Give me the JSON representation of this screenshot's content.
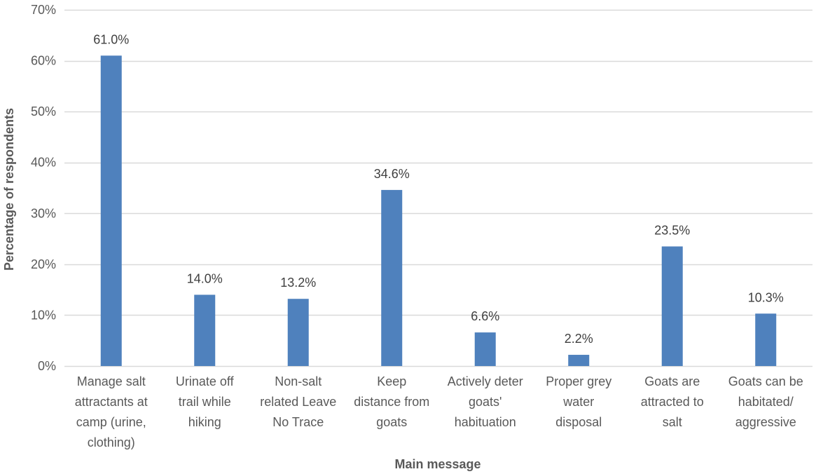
{
  "chart_data": {
    "type": "bar",
    "categories": [
      [
        "Manage salt",
        "attractants at",
        "camp (urine,",
        "clothing)"
      ],
      [
        "Urinate off",
        "trail while",
        "hiking"
      ],
      [
        "Non-salt",
        "related Leave",
        "No Trace"
      ],
      [
        "Keep",
        "distance from",
        "goats"
      ],
      [
        "Actively deter",
        "goats'",
        "habituation"
      ],
      [
        "Proper grey",
        "water",
        "disposal"
      ],
      [
        "Goats are",
        "attracted to",
        "salt"
      ],
      [
        "Goats can be",
        "habitated/",
        "aggressive"
      ]
    ],
    "values": [
      61.0,
      14.0,
      13.2,
      34.6,
      6.6,
      2.2,
      23.5,
      10.3
    ],
    "data_labels": [
      "61.0%",
      "14.0%",
      "13.2%",
      "34.6%",
      "6.6%",
      "2.2%",
      "23.5%",
      "10.3%"
    ],
    "xlabel": "Main message",
    "ylabel": "Percentage of respondents",
    "ylim": [
      0,
      70
    ],
    "yticks": [
      0,
      10,
      20,
      30,
      40,
      50,
      60,
      70
    ],
    "ytick_labels": [
      "0%",
      "10%",
      "20%",
      "30%",
      "40%",
      "50%",
      "60%",
      "70%"
    ],
    "grid": true,
    "bar_color": "#4f81bd",
    "grid_color": "#d9d9d9"
  }
}
